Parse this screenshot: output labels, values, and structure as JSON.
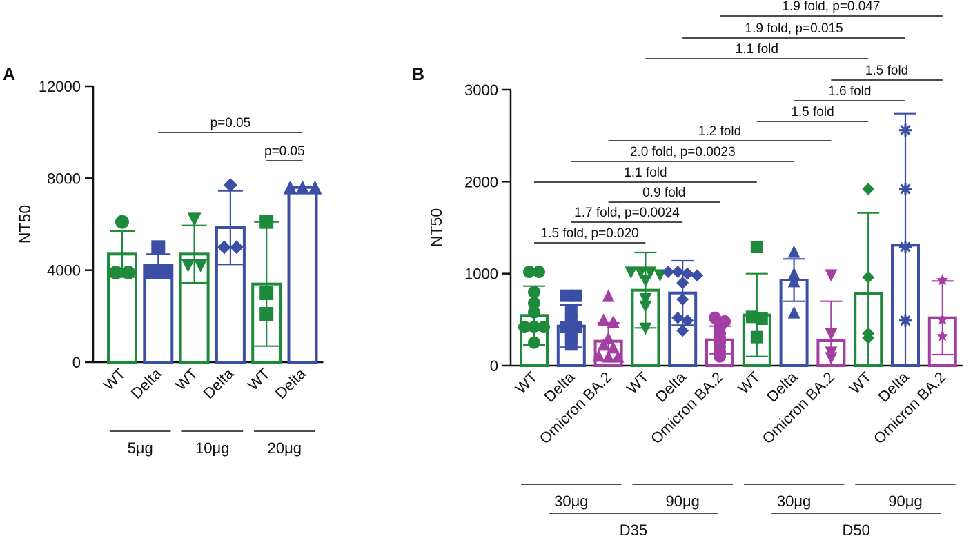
{
  "colors": {
    "green": "#1f8a3c",
    "blue": "#3a4fa5",
    "magenta": "#a33ea3"
  },
  "chart_data": [
    {
      "panel": "A",
      "type": "bar",
      "ylabel": "NT50",
      "ylim": [
        0,
        12000
      ],
      "yticks": [
        "0",
        "4000",
        "8000",
        "12000"
      ],
      "bars": [
        {
          "label": "WT",
          "color": "green",
          "mean": 4700,
          "sd": 1000,
          "marker": "circle",
          "points": [
            6100,
            3900,
            3900
          ]
        },
        {
          "label": "Delta",
          "color": "blue",
          "mean": 4200,
          "sd": 500,
          "marker": "square",
          "points": [
            5000,
            3900,
            3900
          ]
        },
        {
          "label": "WT",
          "color": "green",
          "mean": 4700,
          "sd": 1250,
          "marker": "triangle-down",
          "points": [
            6200,
            4200,
            4200
          ]
        },
        {
          "label": "Delta",
          "color": "blue",
          "mean": 5850,
          "sd": 1600,
          "marker": "diamond",
          "points": [
            7700,
            5000,
            5000
          ]
        },
        {
          "label": "WT",
          "color": "green",
          "mean": 3400,
          "sd": 2700,
          "marker": "square",
          "points": [
            6100,
            3000,
            2100
          ]
        },
        {
          "label": "Delta",
          "color": "blue",
          "mean": 7600,
          "sd": 0,
          "marker": "triangle-up",
          "points": [
            7600,
            7600,
            7600
          ]
        }
      ],
      "groups": [
        {
          "label": "5μg",
          "from": 0,
          "to": 1
        },
        {
          "label": "10μg",
          "from": 2,
          "to": 3
        },
        {
          "label": "20μg",
          "from": 4,
          "to": 5
        }
      ],
      "comparisons": [
        {
          "from": 1,
          "to": 5,
          "label": "p=0.05"
        },
        {
          "from": 4,
          "to": 5,
          "label": "p=0.05"
        }
      ]
    },
    {
      "panel": "B",
      "type": "bar",
      "ylabel": "NT50",
      "ylim": [
        0,
        3000
      ],
      "yticks": [
        "0",
        "1000",
        "2000",
        "3000"
      ],
      "bars": [
        {
          "label": "WT",
          "color": "green",
          "mean": 545,
          "sd": 320,
          "marker": "circle",
          "points": [
            1020,
            1020,
            800,
            680,
            580,
            420,
            420,
            420,
            250
          ]
        },
        {
          "label": "Delta",
          "color": "blue",
          "mean": 430,
          "sd": 230,
          "marker": "square",
          "points": [
            760,
            760,
            590,
            500,
            420,
            420,
            360,
            300,
            230
          ]
        },
        {
          "label": "Omicron BA.2",
          "color": "magenta",
          "mean": 265,
          "sd": 200,
          "marker": "triangle-up",
          "points": [
            760,
            500,
            480,
            300,
            230,
            200,
            110,
            100,
            100
          ]
        },
        {
          "label": "WT",
          "color": "green",
          "mean": 820,
          "sd": 410,
          "marker": "triangle-down",
          "points": [
            1010,
            1010,
            1010,
            980,
            920,
            720,
            640,
            400
          ]
        },
        {
          "label": "Delta",
          "color": "blue",
          "mean": 790,
          "sd": 350,
          "marker": "diamond",
          "points": [
            1020,
            1020,
            1000,
            980,
            900,
            720,
            520,
            490,
            380
          ]
        },
        {
          "label": "Omicron BA.2",
          "color": "magenta",
          "mean": 280,
          "sd": 150,
          "marker": "circle",
          "points": [
            520,
            480,
            420,
            350,
            300,
            250,
            200,
            150,
            100
          ]
        },
        {
          "label": "WT",
          "color": "green",
          "mean": 550,
          "sd": 450,
          "marker": "square",
          "points": [
            1290,
            530,
            510,
            310
          ]
        },
        {
          "label": "Delta",
          "color": "blue",
          "mean": 930,
          "sd": 230,
          "marker": "triangle-up",
          "points": [
            1240,
            1000,
            920,
            580
          ]
        },
        {
          "label": "Omicron BA.2",
          "color": "magenta",
          "mean": 270,
          "sd": 430,
          "marker": "triangle-down",
          "points": [
            980,
            340,
            140,
            80
          ]
        },
        {
          "label": "WT",
          "color": "green",
          "mean": 780,
          "sd": 880,
          "marker": "diamond",
          "points": [
            1920,
            960,
            350,
            300
          ]
        },
        {
          "label": "Delta",
          "color": "blue",
          "mean": 1310,
          "sd": 1430,
          "marker": "asterisk",
          "points": [
            2560,
            1920,
            1290,
            490
          ]
        },
        {
          "label": "Omicron BA.2",
          "color": "magenta",
          "mean": 520,
          "sd": 400,
          "marker": "star",
          "points": [
            930,
            500,
            320
          ]
        }
      ],
      "groups": [
        {
          "label": "30μg",
          "from": 0,
          "to": 2
        },
        {
          "label": "90μg",
          "from": 3,
          "to": 5
        },
        {
          "label": "30μg",
          "from": 6,
          "to": 8
        },
        {
          "label": "90μg",
          "from": 9,
          "to": 11
        }
      ],
      "supergroups": [
        {
          "label": "D35",
          "from": 0,
          "to": 5
        },
        {
          "label": "D50",
          "from": 6,
          "to": 11
        }
      ],
      "comparisons": [
        {
          "from": 0,
          "to": 3,
          "label": "1.5 fold, p=0.020"
        },
        {
          "from": 1,
          "to": 4,
          "label": "1.7 fold, p=0.0024"
        },
        {
          "from": 2,
          "to": 5,
          "label": "0.9 fold"
        },
        {
          "from": 0,
          "to": 6,
          "label": "1.1 fold"
        },
        {
          "from": 1,
          "to": 7,
          "label": "2.0 fold, p=0.0023"
        },
        {
          "from": 2,
          "to": 8,
          "label": "1.2 fold"
        },
        {
          "from": 6,
          "to": 9,
          "label": "1.5 fold"
        },
        {
          "from": 7,
          "to": 10,
          "label": "1.6 fold"
        },
        {
          "from": 8,
          "to": 11,
          "label": "1.5 fold"
        },
        {
          "from": 3,
          "to": 9,
          "label": "1.1 fold"
        },
        {
          "from": 4,
          "to": 10,
          "label": "1.9 fold, p=0.015"
        },
        {
          "from": 5,
          "to": 11,
          "label": "1.9 fold, p=0.047"
        }
      ]
    }
  ]
}
